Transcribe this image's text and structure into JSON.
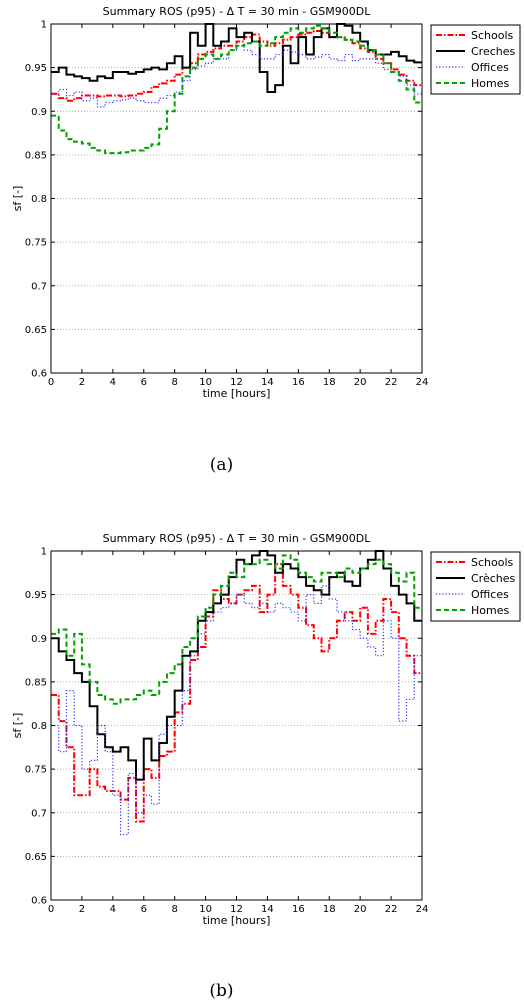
{
  "chart_data": [
    {
      "type": "line",
      "panel": "a",
      "title": "Summary ROS (p95) - Δ T = 30 min - GSM900DL",
      "xlabel": "time [hours]",
      "ylabel": "sf [-]",
      "caption": "(a)",
      "xlim": [
        0,
        24
      ],
      "ylim": [
        0.6,
        1
      ],
      "x_ticks": [
        "0",
        "2",
        "4",
        "6",
        "8",
        "10",
        "12",
        "14",
        "16",
        "18",
        "20",
        "22",
        "24"
      ],
      "y_ticks": [
        "0.6",
        "0.65",
        "0.7",
        "0.75",
        "0.8",
        "0.85",
        "0.9",
        "0.95",
        "1"
      ],
      "grid": true,
      "legend_position": "outside-top-right",
      "step_hours": 0.5,
      "series": [
        {
          "name": "Schools",
          "color": "#ff0000",
          "style": "dashdot",
          "values": [
            0.92,
            0.915,
            0.912,
            0.915,
            0.918,
            0.918,
            0.917,
            0.918,
            0.918,
            0.917,
            0.918,
            0.92,
            0.922,
            0.928,
            0.932,
            0.935,
            0.942,
            0.95,
            0.955,
            0.965,
            0.968,
            0.972,
            0.975,
            0.975,
            0.98,
            0.985,
            0.988,
            0.98,
            0.975,
            0.978,
            0.982,
            0.985,
            0.988,
            0.99,
            0.992,
            0.99,
            0.985,
            0.985,
            0.982,
            0.978,
            0.972,
            0.968,
            0.96,
            0.955,
            0.948,
            0.942,
            0.935,
            0.93
          ]
        },
        {
          "name": "Creches",
          "color": "#000000",
          "style": "solid",
          "values": [
            0.945,
            0.95,
            0.942,
            0.94,
            0.938,
            0.935,
            0.94,
            0.938,
            0.945,
            0.945,
            0.943,
            0.945,
            0.948,
            0.95,
            0.948,
            0.955,
            0.963,
            0.95,
            0.99,
            0.975,
            1.0,
            0.975,
            0.98,
            0.995,
            0.985,
            0.99,
            0.98,
            0.945,
            0.922,
            0.93,
            0.975,
            0.955,
            0.985,
            0.965,
            0.985,
            0.995,
            0.985,
            1.0,
            0.998,
            0.99,
            0.98,
            0.97,
            0.965,
            0.965,
            0.968,
            0.963,
            0.958,
            0.956
          ]
        },
        {
          "name": "Offices",
          "color": "#3030ff",
          "style": "dotted",
          "values": [
            0.92,
            0.925,
            0.918,
            0.922,
            0.912,
            0.915,
            0.905,
            0.91,
            0.912,
            0.913,
            0.915,
            0.912,
            0.91,
            0.91,
            0.915,
            0.918,
            0.922,
            0.935,
            0.948,
            0.952,
            0.955,
            0.96,
            0.96,
            0.97,
            0.975,
            0.97,
            0.965,
            0.96,
            0.96,
            0.965,
            0.97,
            0.968,
            0.965,
            0.96,
            0.962,
            0.965,
            0.96,
            0.958,
            0.965,
            0.958,
            0.96,
            0.96,
            0.955,
            0.948,
            0.945,
            0.94,
            0.93,
            0.92
          ]
        },
        {
          "name": "Homes",
          "color": "#00a000",
          "style": "dashed",
          "values": [
            0.895,
            0.878,
            0.868,
            0.865,
            0.863,
            0.858,
            0.855,
            0.852,
            0.852,
            0.853,
            0.855,
            0.855,
            0.858,
            0.862,
            0.88,
            0.9,
            0.92,
            0.94,
            0.95,
            0.96,
            0.965,
            0.96,
            0.965,
            0.97,
            0.975,
            0.978,
            0.98,
            0.975,
            0.978,
            0.985,
            0.99,
            0.995,
            0.99,
            0.995,
            0.998,
            0.995,
            0.99,
            0.985,
            0.982,
            0.98,
            0.975,
            0.97,
            0.965,
            0.955,
            0.945,
            0.935,
            0.925,
            0.91
          ]
        }
      ]
    },
    {
      "type": "line",
      "panel": "b",
      "title": "Summary ROS (p95) - Δ T = 30 min - GSM900DL",
      "xlabel": "time [hours]",
      "ylabel": "sf [-]",
      "caption": "(b)",
      "xlim": [
        0,
        24
      ],
      "ylim": [
        0.6,
        1
      ],
      "x_ticks": [
        "0",
        "2",
        "4",
        "6",
        "8",
        "10",
        "12",
        "14",
        "16",
        "18",
        "20",
        "22",
        "24"
      ],
      "y_ticks": [
        "0.6",
        "0.65",
        "0.7",
        "0.75",
        "0.8",
        "0.85",
        "0.9",
        "0.95",
        "1"
      ],
      "grid": true,
      "legend_position": "outside-top-right",
      "step_hours": 0.5,
      "series": [
        {
          "name": "Schools",
          "color": "#ff0000",
          "style": "dashdot",
          "values": [
            0.835,
            0.805,
            0.775,
            0.72,
            0.72,
            0.75,
            0.73,
            0.725,
            0.725,
            0.715,
            0.74,
            0.69,
            0.75,
            0.74,
            0.765,
            0.77,
            0.815,
            0.825,
            0.875,
            0.89,
            0.925,
            0.955,
            0.945,
            0.94,
            0.95,
            0.955,
            0.96,
            0.93,
            0.95,
            0.985,
            0.96,
            0.95,
            0.935,
            0.915,
            0.9,
            0.885,
            0.9,
            0.92,
            0.93,
            0.92,
            0.935,
            0.905,
            0.92,
            0.945,
            0.93,
            0.9,
            0.88,
            0.86
          ]
        },
        {
          "name": "Crèches",
          "color": "#000000",
          "style": "solid",
          "values": [
            0.9,
            0.885,
            0.875,
            0.86,
            0.85,
            0.822,
            0.79,
            0.775,
            0.77,
            0.775,
            0.76,
            0.738,
            0.785,
            0.76,
            0.78,
            0.81,
            0.84,
            0.88,
            0.885,
            0.92,
            0.93,
            0.94,
            0.95,
            0.97,
            0.99,
            0.985,
            0.995,
            1.0,
            0.995,
            0.975,
            0.985,
            0.98,
            0.97,
            0.96,
            0.955,
            0.95,
            0.97,
            0.975,
            0.965,
            0.96,
            0.98,
            0.99,
            1.0,
            0.98,
            0.96,
            0.95,
            0.94,
            0.92
          ]
        },
        {
          "name": "Offices",
          "color": "#3030ff",
          "style": "dotted",
          "values": [
            0.8,
            0.77,
            0.84,
            0.8,
            0.75,
            0.76,
            0.8,
            0.77,
            0.72,
            0.675,
            0.745,
            0.7,
            0.72,
            0.71,
            0.79,
            0.8,
            0.8,
            0.84,
            0.88,
            0.905,
            0.92,
            0.93,
            0.935,
            0.94,
            0.95,
            0.94,
            0.935,
            0.94,
            0.93,
            0.94,
            0.935,
            0.93,
            0.92,
            0.95,
            0.94,
            0.96,
            0.945,
            0.93,
            0.92,
            0.91,
            0.9,
            0.89,
            0.88,
            0.92,
            0.9,
            0.805,
            0.83,
            0.88
          ]
        },
        {
          "name": "Homes",
          "color": "#00a000",
          "style": "dashed",
          "values": [
            0.905,
            0.91,
            0.88,
            0.905,
            0.87,
            0.85,
            0.835,
            0.83,
            0.825,
            0.83,
            0.83,
            0.835,
            0.84,
            0.835,
            0.85,
            0.86,
            0.87,
            0.89,
            0.9,
            0.925,
            0.935,
            0.95,
            0.96,
            0.975,
            0.97,
            0.985,
            0.985,
            0.99,
            0.985,
            0.98,
            0.995,
            0.99,
            0.975,
            0.97,
            0.965,
            0.975,
            0.975,
            0.97,
            0.98,
            0.975,
            0.98,
            0.985,
            0.99,
            0.985,
            0.975,
            0.965,
            0.975,
            0.935
          ]
        }
      ]
    }
  ]
}
